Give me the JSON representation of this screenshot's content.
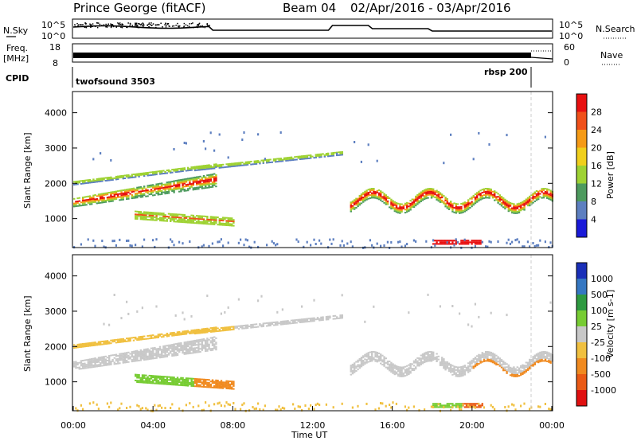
{
  "header": {
    "radar": "Prince George (fitACF)",
    "beam": "Beam 04",
    "dates": "02/Apr/2016 - 03/Apr/2016"
  },
  "panels": {
    "nsky": {
      "left_label": "N.Sky",
      "right_label": "N.Search",
      "tick_top": "10^5",
      "tick_bottom": "10^0",
      "right_tick_top": "10^5",
      "right_tick_bottom": "10^0"
    },
    "freq": {
      "left_label_1": "Freq.",
      "left_label_2": "[MHz]",
      "tick_top": "18",
      "tick_bottom": "8",
      "right_label": "Nave",
      "right_tick_top": "60",
      "right_tick_bottom": "0"
    },
    "cpid": {
      "label": "CPID",
      "program_left": "twofsound 3503",
      "program_right": "rbsp 200"
    }
  },
  "chart_data": [
    {
      "type": "heatmap",
      "name": "power",
      "ylabel": "Slant Range [km]",
      "yticks": [
        1000,
        2000,
        3000,
        4000
      ],
      "ylim": [
        180,
        4600
      ],
      "xlim": [
        0,
        24
      ],
      "colorbar": {
        "label": "Power [dB]",
        "ticks": [
          "28",
          "24",
          "20",
          "16",
          "12",
          "8",
          "4"
        ],
        "colors": [
          "#e81010",
          "#f0501a",
          "#f59a16",
          "#f0cf1c",
          "#9ed233",
          "#4d9a5e",
          "#5d7fc0",
          "#1a1ad8"
        ]
      },
      "features": [
        {
          "band": "main ionospheric echo",
          "start_h": 0.2,
          "end_h": 7.0,
          "range_km": [
            1200,
            2100
          ],
          "peak_db": 28
        },
        {
          "band": "lower band",
          "start_h": 3.0,
          "end_h": 8.0,
          "range_km": [
            700,
            1400
          ],
          "peak_db": 24
        },
        {
          "band": "evening echo",
          "start_h": 13.8,
          "end_h": 24.0,
          "range_km": [
            1000,
            2100
          ],
          "peak_db": 28
        },
        {
          "band": "near-range echo",
          "start_h": 18.0,
          "end_h": 20.5,
          "range_km": [
            200,
            600
          ],
          "peak_db": 28
        }
      ]
    },
    {
      "type": "heatmap",
      "name": "velocity",
      "ylabel": "Slant Range [km]",
      "yticks": [
        1000,
        2000,
        3000,
        4000
      ],
      "ylim": [
        180,
        4600
      ],
      "xlim": [
        0,
        24
      ],
      "xlabel": "Time UT",
      "xticks": [
        "00:00",
        "04:00",
        "08:00",
        "12:00",
        "16:00",
        "20:00",
        "00:00"
      ],
      "colorbar": {
        "label": "Velocity [m s-1]",
        "ticks": [
          "1000",
          "500",
          "100",
          "25",
          "-25",
          "-100",
          "-500",
          "-1000"
        ],
        "colors": [
          "#1a2fb8",
          "#3577c2",
          "#2e9a40",
          "#77cc33",
          "#c8c8c8",
          "#f0c040",
          "#f08a20",
          "#ea5a15",
          "#e01010"
        ]
      }
    }
  ]
}
